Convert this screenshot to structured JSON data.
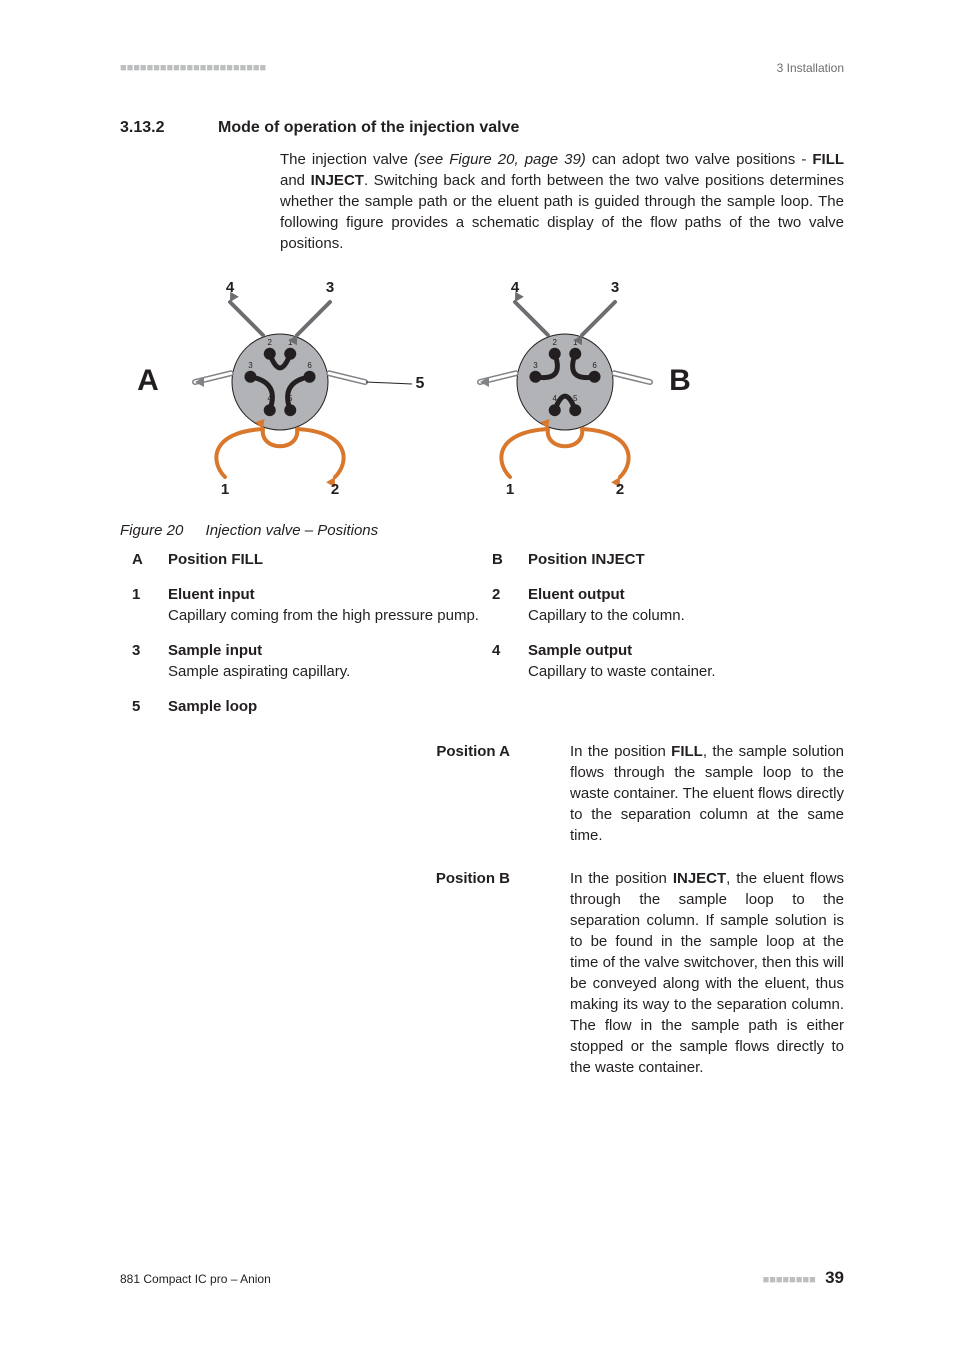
{
  "header": {
    "left_dashes": "■■■■■■■■■■■■■■■■■■■■■■",
    "right": "3 Installation"
  },
  "section": {
    "number": "3.13.2",
    "title": "Mode of operation of the injection valve",
    "para_html": "The injection valve <i>(see Figure 20, page 39)</i> can adopt two valve positions - <b>FILL</b> and <b>INJECT</b>. Switching back and forth between the two valve positions determines whether the sample path or the eluent path is guided through the sample loop. The following figure provides a schematic display of the flow paths of the two valve positions."
  },
  "figure": {
    "caption_num": "Figure 20",
    "caption_text": "Injection valve – Positions",
    "labels": {
      "A": "A",
      "B": "B",
      "five": "5",
      "outer": [
        "1",
        "2",
        "3",
        "4"
      ],
      "ports": [
        "1",
        "2",
        "3",
        "4",
        "5",
        "6"
      ]
    },
    "colors": {
      "valve_fill": "#b1b3b6",
      "valve_stroke": "#231f20",
      "port_fill": "#231f20",
      "eluent": "#d9782d",
      "sample": "#6d6e71",
      "text": "#231f20"
    }
  },
  "legend": [
    {
      "key": "A",
      "term": "Position FILL",
      "desc": ""
    },
    {
      "key": "B",
      "term": "Position INJECT",
      "desc": ""
    },
    {
      "key": "1",
      "term": "Eluent input",
      "desc": "Capillary coming from the high pressure pump."
    },
    {
      "key": "2",
      "term": "Eluent output",
      "desc": "Capillary to the column."
    },
    {
      "key": "3",
      "term": "Sample input",
      "desc": "Sample aspirating capillary."
    },
    {
      "key": "4",
      "term": "Sample output",
      "desc": "Capillary to waste container."
    },
    {
      "key": "5",
      "term": "Sample loop",
      "desc": ""
    }
  ],
  "positions": [
    {
      "label": "Position A",
      "html": "In the position <b>FILL</b>, the sample solution flows through the sample loop to the waste container. The eluent flows directly to the separation column at the same time."
    },
    {
      "label": "Position B",
      "html": "In the position <b>INJECT</b>, the eluent flows through the sample loop to the separation column. If sample solution is to be found in the sample loop at the time of the valve switchover, then this will be conveyed along with the eluent, thus making its way to the separation column. The flow in the sample path is either stopped or the sample flows directly to the waste container."
    }
  ],
  "footer": {
    "left": "881 Compact IC pro – Anion",
    "right_dashes": "■■■■■■■■",
    "page": "39"
  }
}
